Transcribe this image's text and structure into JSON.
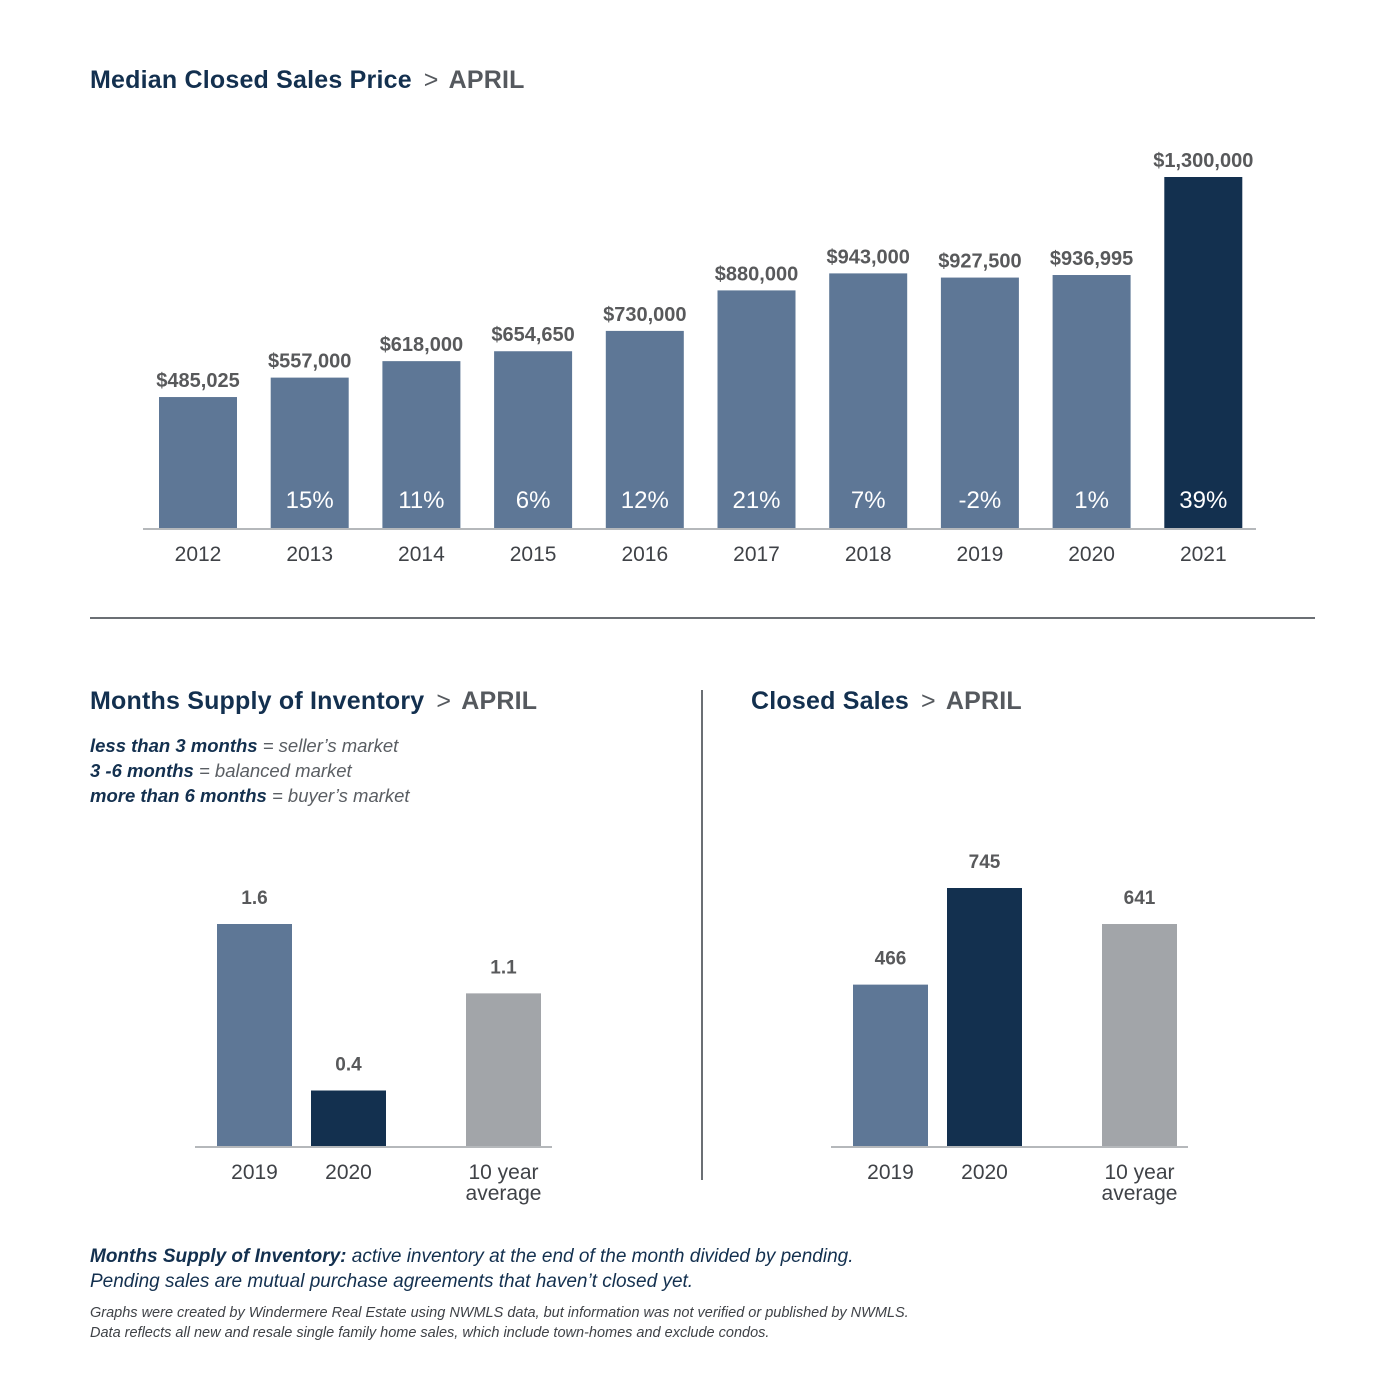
{
  "colors": {
    "bar_default": "#5e7796",
    "bar_highlight": "#13304f",
    "bar_average": "#a2a5a9",
    "axis": "#b5b8bb",
    "divider": "#6b6f74",
    "title": "#13304f",
    "subtitle": "#55595e"
  },
  "median_price": {
    "title": "Median Closed Sales Price",
    "separator": ">",
    "month": "APRIL"
  },
  "inventory": {
    "title": "Months Supply of Inventory",
    "separator": ">",
    "month": "APRIL",
    "legend": [
      {
        "term": "less than 3 months",
        "eq": " = ",
        "meaning": "seller’s market"
      },
      {
        "term": "3 -6 months",
        "eq": " = ",
        "meaning": "balanced market"
      },
      {
        "term": "more than 6 months",
        "eq": " = ",
        "meaning": "buyer’s market"
      }
    ]
  },
  "closed_sales": {
    "title": "Closed Sales",
    "separator": ">",
    "month": "APRIL"
  },
  "footnote": {
    "term": "Months Supply of Inventory:",
    "text1": " active inventory at the end of the month divided by pending.",
    "text2": "Pending sales are mutual purchase agreements that haven’t closed yet."
  },
  "credits": {
    "line1": "Graphs were created by Windermere Real Estate using NWMLS data, but information was not verified or published by NWMLS.",
    "line2": "Data reflects all new and resale single family home sales, which include town-homes and exclude condos."
  },
  "chart_data": [
    {
      "type": "bar",
      "title": "Median Closed Sales Price",
      "subtitle": "APRIL",
      "categories": [
        "2012",
        "2013",
        "2014",
        "2015",
        "2016",
        "2017",
        "2018",
        "2019",
        "2020",
        "2021"
      ],
      "values": [
        485025,
        557000,
        618000,
        654650,
        730000,
        880000,
        943000,
        927500,
        936995,
        1300000
      ],
      "value_labels": [
        "$485,025",
        "$557,000",
        "$618,000",
        "$654,650",
        "$730,000",
        "$880,000",
        "$943,000",
        "$927,500",
        "$936,995",
        "$1,300,000"
      ],
      "pct_change_labels": [
        "",
        "15%",
        "11%",
        "6%",
        "12%",
        "21%",
        "7%",
        "-2%",
        "1%",
        "39%"
      ],
      "highlight": [
        false,
        false,
        false,
        false,
        false,
        false,
        false,
        false,
        false,
        true
      ],
      "grid": false,
      "legend": "none"
    },
    {
      "type": "bar",
      "title": "Months Supply of Inventory",
      "subtitle": "APRIL",
      "categories": [
        "2019",
        "2020",
        "10 year average"
      ],
      "category_lines": [
        [
          "2019"
        ],
        [
          "2020"
        ],
        [
          "10 year",
          "average"
        ]
      ],
      "values": [
        1.6,
        0.4,
        1.1
      ],
      "value_labels": [
        "1.6",
        "0.4",
        "1.1"
      ],
      "bar_roles": [
        "default",
        "highlight",
        "average"
      ],
      "grid": false,
      "legend": "none"
    },
    {
      "type": "bar",
      "title": "Closed Sales",
      "subtitle": "APRIL",
      "categories": [
        "2019",
        "2020",
        "10 year average"
      ],
      "category_lines": [
        [
          "2019"
        ],
        [
          "2020"
        ],
        [
          "10 year",
          "average"
        ]
      ],
      "values": [
        466,
        745,
        641
      ],
      "value_labels": [
        "466",
        "745",
        "641"
      ],
      "bar_roles": [
        "default",
        "highlight",
        "average"
      ],
      "grid": false,
      "legend": "none"
    }
  ]
}
